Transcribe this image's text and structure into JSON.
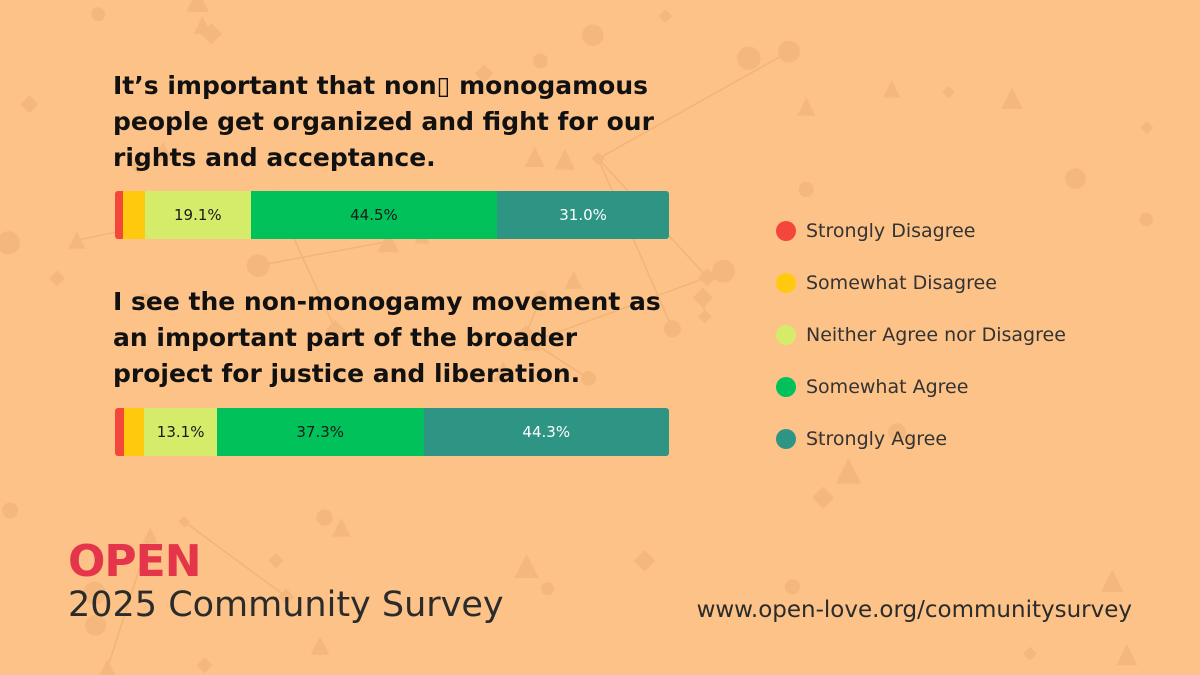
{
  "chart_data": {
    "type": "bar",
    "orientation": "horizontal-stacked",
    "categories": [
      "Strongly Disagree",
      "Somewhat Disagree",
      "Neither Agree nor Disagree",
      "Somewhat Agree",
      "Strongly Agree"
    ],
    "colors": [
      "#f4473b",
      "#ffc90e",
      "#d4ec6a",
      "#00c15a",
      "#2e9585"
    ],
    "legend_position": "right",
    "questions": [
      {
        "title": "It’s important that non▯ monogamous\npeople get organized and fight for our\nrights and acceptance.",
        "values": [
          1.4,
          4.0,
          19.1,
          44.5,
          31.0
        ],
        "labels": [
          "",
          "",
          "19.1%",
          "44.5%",
          "31.0%"
        ]
      },
      {
        "title": "I see the non-monogamy movement as\nan important part of the broader\nproject for justice and liberation.",
        "values": [
          1.6,
          3.7,
          13.1,
          37.3,
          44.3
        ],
        "labels": [
          "",
          "",
          "13.1%",
          "37.3%",
          "44.3%"
        ]
      }
    ]
  },
  "footer": {
    "logo_text": "OPEN",
    "survey_title": "2025 Community Survey",
    "url": "www.open-love.org/communitysurvey"
  }
}
